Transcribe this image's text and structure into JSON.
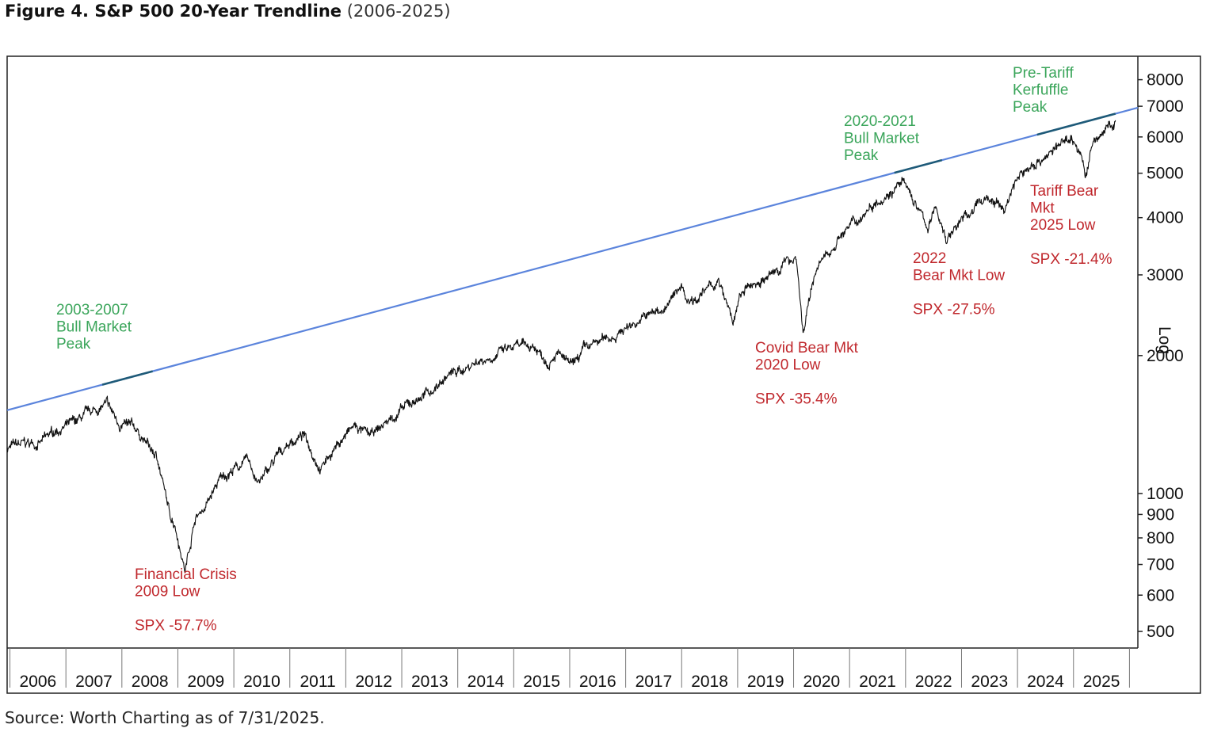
{
  "figure": {
    "title_bold": "Figure 4. S&P 500 20-Year Trendline",
    "title_range": "(2006-2025)",
    "source": "Source: Worth Charting as of 7/31/2025."
  },
  "colors": {
    "price": "#111111",
    "trendline": "#5b84dc",
    "trend_touch": "#1e5a78",
    "bull_annotation": "#3aa55a",
    "bear_annotation": "#c0282d",
    "frame": "#222222",
    "log_watermark": "#9a9a9a"
  },
  "chart_data": {
    "type": "line",
    "title": "S&P 500 20-Year Trendline",
    "scale": "log",
    "y_axis_label": "Log",
    "y_ticks": [
      500,
      600,
      700,
      800,
      900,
      1000,
      2000,
      3000,
      4000,
      5000,
      6000,
      7000,
      8000
    ],
    "ylim": [
      460,
      9000
    ],
    "x_years": [
      "2006",
      "2007",
      "2008",
      "2009",
      "2010",
      "2011",
      "2012",
      "2013",
      "2014",
      "2015",
      "2016",
      "2017",
      "2018",
      "2019",
      "2020",
      "2021",
      "2022",
      "2023",
      "2024",
      "2025"
    ],
    "xlim": [
      2006.0,
      2026.2
    ],
    "series": [
      {
        "name": "S&P 500 (SPX)",
        "x": [
          2006.0,
          2006.3,
          2006.6,
          2006.9,
          2007.2,
          2007.5,
          2007.78,
          2008.0,
          2008.3,
          2008.5,
          2008.7,
          2008.9,
          2009.0,
          2009.18,
          2009.35,
          2009.55,
          2009.8,
          2010.0,
          2010.3,
          2010.5,
          2010.8,
          2011.0,
          2011.3,
          2011.6,
          2011.75,
          2011.9,
          2012.2,
          2012.5,
          2012.8,
          2013.0,
          2013.3,
          2013.6,
          2013.9,
          2014.1,
          2014.4,
          2014.6,
          2014.9,
          2015.1,
          2015.4,
          2015.65,
          2015.8,
          2016.1,
          2016.3,
          2016.6,
          2016.9,
          2017.2,
          2017.5,
          2017.8,
          2018.05,
          2018.15,
          2018.4,
          2018.7,
          2018.98,
          2019.1,
          2019.4,
          2019.6,
          2019.9,
          2020.1,
          2020.22,
          2020.45,
          2020.7,
          2020.9,
          2021.2,
          2021.5,
          2021.8,
          2021.99,
          2022.2,
          2022.45,
          2022.6,
          2022.78,
          2023.0,
          2023.2,
          2023.5,
          2023.82,
          2024.0,
          2024.3,
          2024.6,
          2024.85,
          2025.0,
          2025.15,
          2025.27,
          2025.4,
          2025.6,
          2025.8
        ],
        "values": [
          1260,
          1280,
          1290,
          1380,
          1420,
          1500,
          1560,
          1420,
          1380,
          1280,
          1180,
          900,
          860,
          680,
          880,
          940,
          1070,
          1120,
          1180,
          1050,
          1190,
          1280,
          1340,
          1140,
          1210,
          1280,
          1400,
          1330,
          1440,
          1500,
          1600,
          1680,
          1820,
          1850,
          1950,
          1980,
          2050,
          2080,
          2100,
          1950,
          2050,
          1880,
          2050,
          2150,
          2230,
          2360,
          2460,
          2560,
          2860,
          2650,
          2720,
          2900,
          2350,
          2700,
          2900,
          2950,
          3200,
          3300,
          2240,
          3100,
          3350,
          3700,
          3950,
          4350,
          4600,
          4780,
          4350,
          3800,
          4200,
          3580,
          3900,
          4100,
          4450,
          4150,
          4800,
          5200,
          5500,
          5800,
          6050,
          5600,
          4950,
          5800,
          6200,
          6390
        ]
      },
      {
        "name": "20-Year Trendline",
        "x": [
          2006.0,
          2026.2
        ],
        "values": [
          1520,
          6950
        ]
      }
    ],
    "annotations": [
      {
        "kind": "bull",
        "lines": [
          "2003-2007",
          "Bull Market",
          "Peak"
        ]
      },
      {
        "kind": "bull",
        "lines": [
          "2020-2021",
          "Bull Market",
          "Peak"
        ]
      },
      {
        "kind": "bull",
        "lines": [
          "Pre-Tariff",
          "Kerfuffle",
          "Peak"
        ]
      },
      {
        "kind": "bear",
        "lines": [
          "Financial Crisis",
          "2009 Low",
          "",
          "SPX -57.7%"
        ]
      },
      {
        "kind": "bear",
        "lines": [
          "Covid Bear Mkt",
          "2020 Low",
          "",
          "SPX -35.4%"
        ]
      },
      {
        "kind": "bear",
        "lines": [
          "2022",
          "Bear Mkt Low",
          "",
          "SPX -27.5%"
        ]
      },
      {
        "kind": "bear",
        "lines": [
          "Tariff Bear",
          "Mkt",
          "2025 Low",
          "",
          "SPX -21.4%"
        ]
      }
    ]
  }
}
